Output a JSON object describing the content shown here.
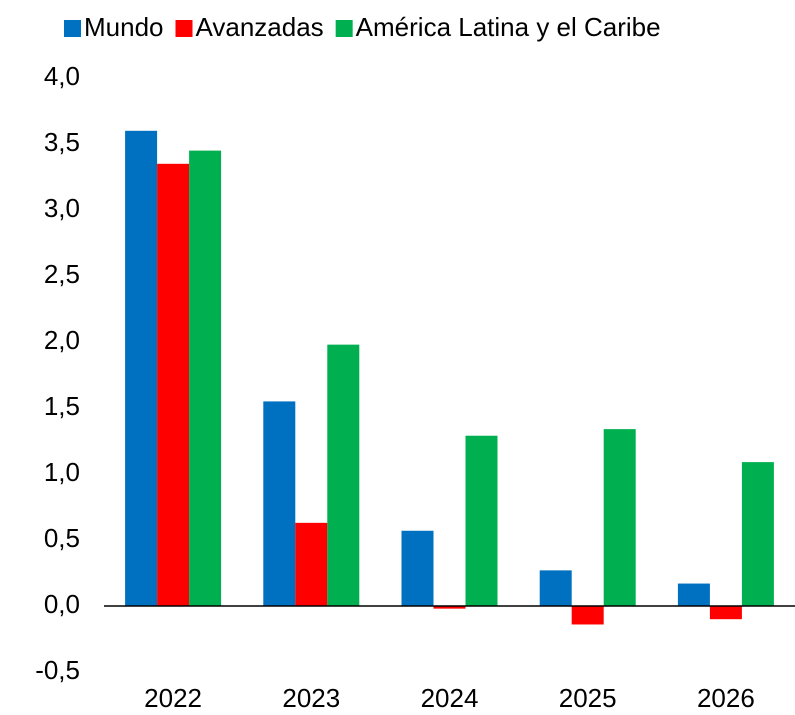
{
  "chart_data": {
    "type": "bar",
    "categories": [
      "2022",
      "2023",
      "2024",
      "2025",
      "2026"
    ],
    "series": [
      {
        "name": "Mundo",
        "color": "#0070c0",
        "values": [
          3.6,
          1.55,
          0.57,
          0.27,
          0.17
        ]
      },
      {
        "name": "Avanzadas",
        "color": "#ff0000",
        "values": [
          3.35,
          0.63,
          -0.02,
          -0.14,
          -0.1
        ]
      },
      {
        "name": "América Latina y el Caribe",
        "color": "#00b050",
        "values": [
          3.45,
          1.98,
          1.29,
          1.34,
          1.09
        ]
      }
    ],
    "ylim": [
      -0.5,
      4
    ],
    "yticks": [
      {
        "value": -0.5,
        "label": "-0,5"
      },
      {
        "value": 0,
        "label": "0,0"
      },
      {
        "value": 0.5,
        "label": "0,5"
      },
      {
        "value": 1,
        "label": "1,0"
      },
      {
        "value": 1.5,
        "label": "1,5"
      },
      {
        "value": 2,
        "label": "2,0"
      },
      {
        "value": 2.5,
        "label": "2,5"
      },
      {
        "value": 3,
        "label": "3,0"
      },
      {
        "value": 3.5,
        "label": "3,5"
      },
      {
        "value": 4,
        "label": "4,0"
      }
    ],
    "grid": false,
    "legend": "top"
  }
}
